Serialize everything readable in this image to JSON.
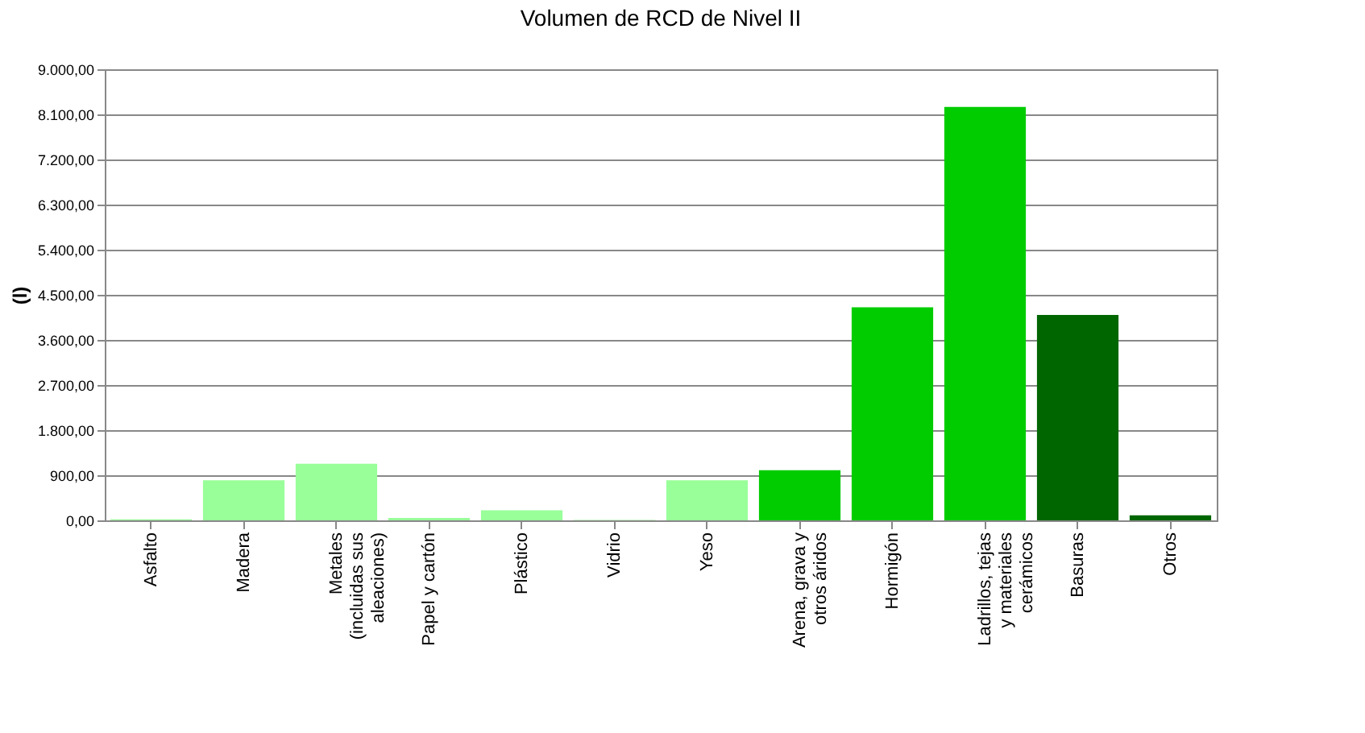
{
  "chart_data": {
    "type": "bar",
    "title": "Volumen de RCD de Nivel II",
    "ylabel": "(l)",
    "categories": [
      "Asfalto",
      "Madera",
      "Metales (incluidas sus aleaciones)",
      "Papel y cartón",
      "Plástico",
      "Vidrio",
      "Yeso",
      "Arena, grava y otros áridos",
      "Hormigón",
      "Ladrillos, tejas y materiales cerámicos",
      "Basuras",
      "Otros"
    ],
    "values": [
      20,
      800,
      1130,
      50,
      200,
      10,
      800,
      1000,
      4250,
      8250,
      4100,
      100
    ],
    "colors": [
      "#99ff99",
      "#99ff99",
      "#99ff99",
      "#99ff99",
      "#99ff99",
      "#99ff99",
      "#99ff99",
      "#00cc00",
      "#00cc00",
      "#00cc00",
      "#006600",
      "#006600"
    ],
    "ylim": [
      0,
      9000
    ],
    "yticks": [
      {
        "value": 0,
        "label": "0,00"
      },
      {
        "value": 900,
        "label": "900,00"
      },
      {
        "value": 1800,
        "label": "1.800,00"
      },
      {
        "value": 2700,
        "label": "2.700,00"
      },
      {
        "value": 3600,
        "label": "3.600,00"
      },
      {
        "value": 4500,
        "label": "4.500,00"
      },
      {
        "value": 5400,
        "label": "5.400,00"
      },
      {
        "value": 6300,
        "label": "6.300,00"
      },
      {
        "value": 7200,
        "label": "7.200,00"
      },
      {
        "value": 8100,
        "label": "8.100,00"
      },
      {
        "value": 9000,
        "label": "9.000,00"
      }
    ],
    "grid": "y"
  }
}
